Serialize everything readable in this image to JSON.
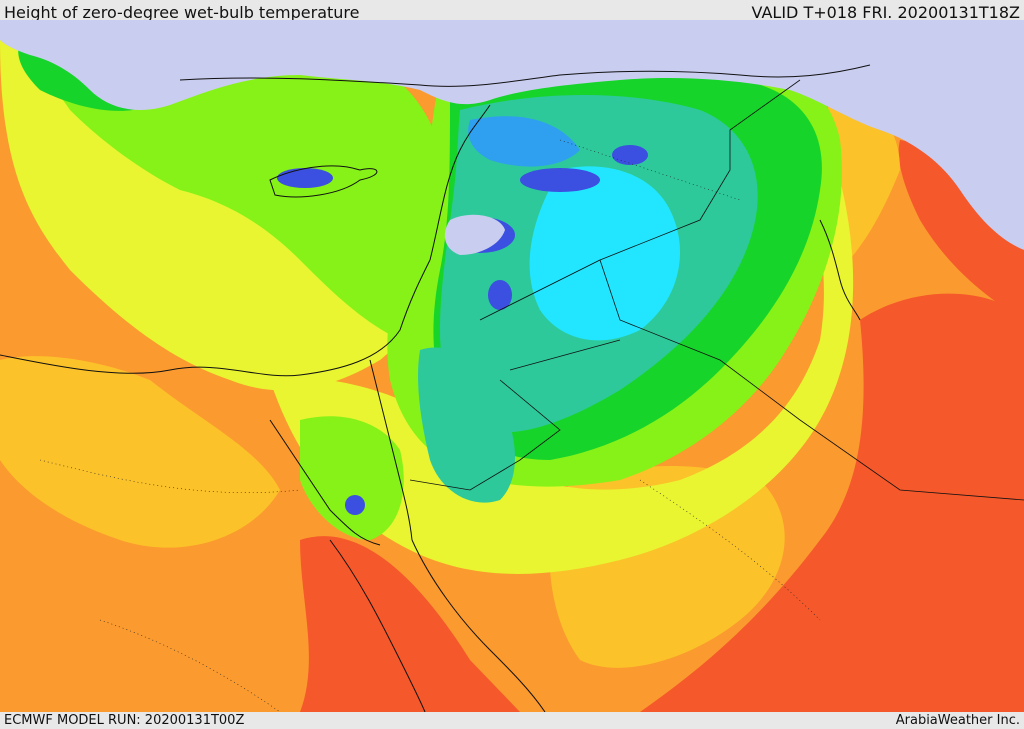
{
  "header": {
    "title": "Height of zero-degree wet-bulb temperature",
    "valid": "VALID T+018 FRI. 20200131T18Z"
  },
  "footer": {
    "model_run": "ECMWF MODEL RUN: 20200131T00Z",
    "credit": "ArabiaWeather Inc."
  },
  "map": {
    "variable": "zero-degree wet-bulb height",
    "color_scale": [
      "#c9cdf0",
      "#3b4fe0",
      "#2fa0f0",
      "#22e6ff",
      "#2dc99a",
      "#17d42a",
      "#86f218",
      "#e8f530",
      "#fcc22a",
      "#fb9a2e",
      "#f5582a"
    ]
  }
}
